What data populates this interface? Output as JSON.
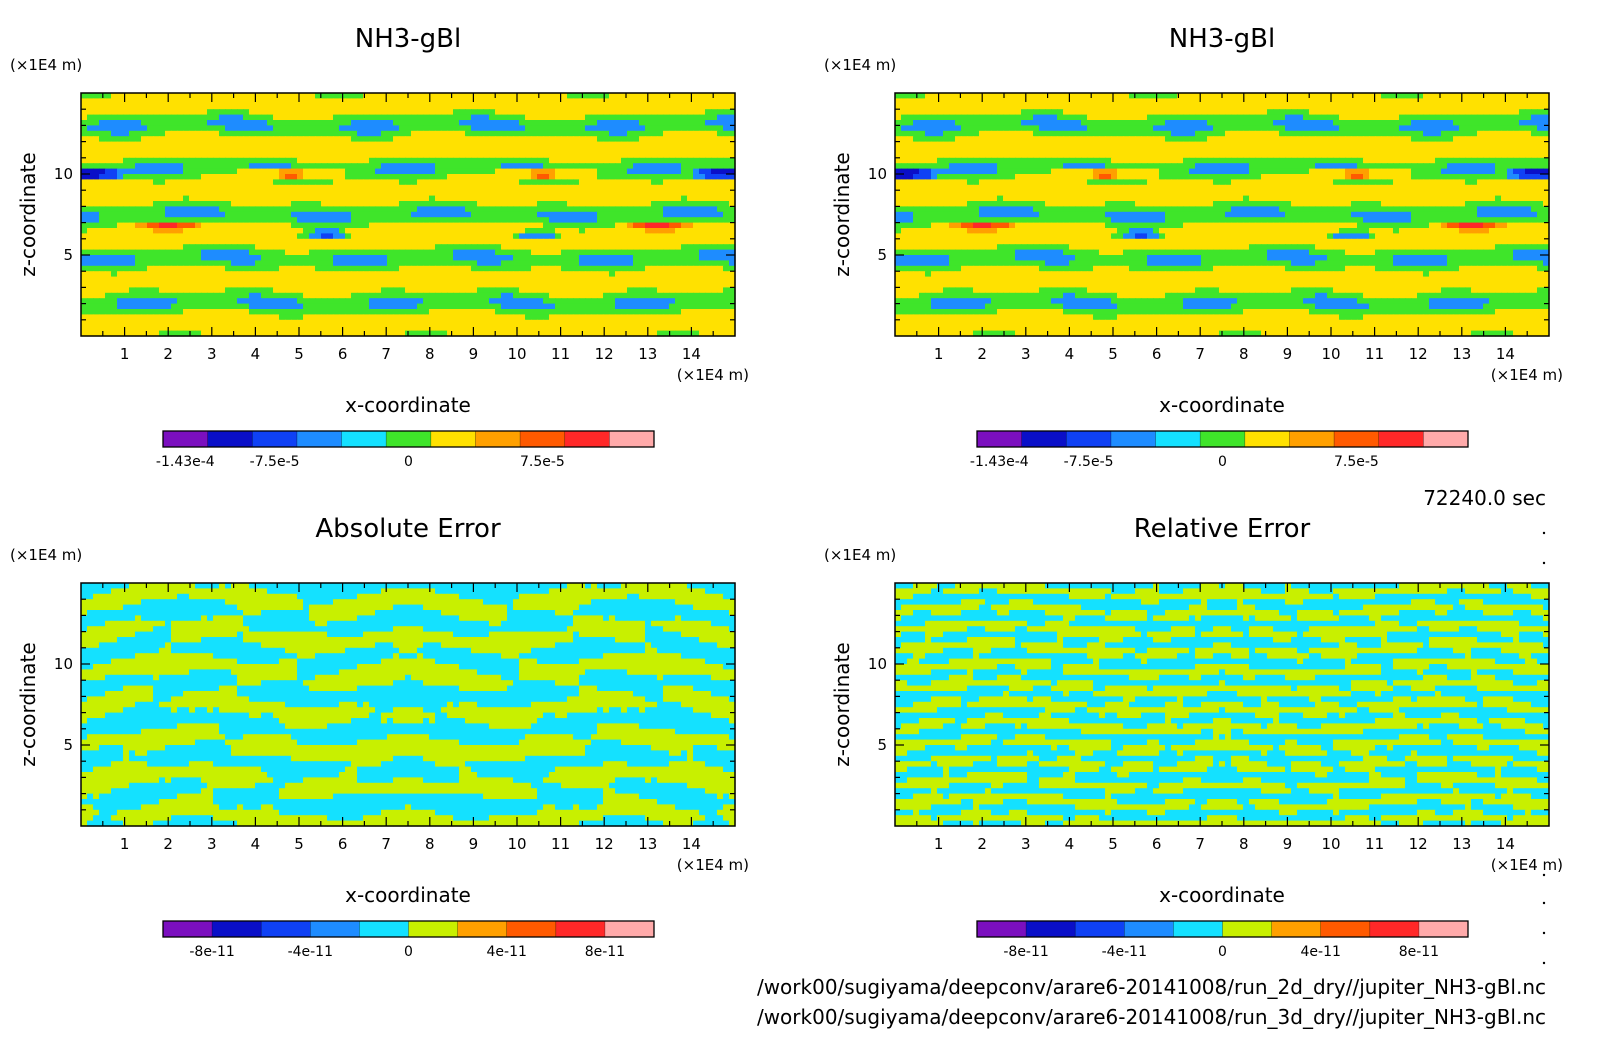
{
  "time_label": "72240.0 sec",
  "files": [
    "/work00/sugiyama/deepconv/arare6-20141008/run_2d_dry//jupiter_NH3-gBl.nc",
    "/work00/sugiyama/deepconv/arare6-20141008/run_3d_dry//jupiter_NH3-gBl.nc"
  ],
  "chart_data": [
    {
      "type": "heatmap",
      "title": "NH3-gBl",
      "xlabel": "x-coordinate",
      "ylabel": "z-coordinate",
      "x_unit": "(×1E4 m)",
      "z_unit": "(×1E4 m)",
      "xlim": [
        0,
        15
      ],
      "zlim": [
        0,
        15
      ],
      "x_ticks": [
        "1",
        "2",
        "3",
        "4",
        "5",
        "6",
        "7",
        "8",
        "9",
        "10",
        "11",
        "12",
        "13",
        "14"
      ],
      "z_ticks": [
        "5",
        "10"
      ],
      "colorbar": {
        "colors": [
          "#7b0fbf",
          "#0a0fc8",
          "#0f41f5",
          "#1e8cff",
          "#14e1ff",
          "#3fe52a",
          "#ffe100",
          "#ffa000",
          "#ff5a00",
          "#ff2828",
          "#ffaaaa"
        ],
        "tick_labels": [
          "-1.43e-4",
          "-7.5e-5",
          "0",
          "7.5e-5"
        ]
      }
    },
    {
      "type": "heatmap",
      "title": "NH3-gBl",
      "xlabel": "x-coordinate",
      "ylabel": "z-coordinate",
      "x_unit": "(×1E4 m)",
      "z_unit": "(×1E4 m)",
      "xlim": [
        0,
        15
      ],
      "zlim": [
        0,
        15
      ],
      "x_ticks": [
        "1",
        "2",
        "3",
        "4",
        "5",
        "6",
        "7",
        "8",
        "9",
        "10",
        "11",
        "12",
        "13",
        "14"
      ],
      "z_ticks": [
        "5",
        "10"
      ],
      "colorbar": {
        "colors": [
          "#7b0fbf",
          "#0a0fc8",
          "#0f41f5",
          "#1e8cff",
          "#14e1ff",
          "#3fe52a",
          "#ffe100",
          "#ffa000",
          "#ff5a00",
          "#ff2828",
          "#ffaaaa"
        ],
        "tick_labels": [
          "-1.43e-4",
          "-7.5e-5",
          "0",
          "7.5e-5"
        ]
      }
    },
    {
      "type": "heatmap",
      "title": "Absolute Error",
      "xlabel": "x-coordinate",
      "ylabel": "z-coordinate",
      "x_unit": "(×1E4 m)",
      "z_unit": "(×1E4 m)",
      "xlim": [
        0,
        15
      ],
      "zlim": [
        0,
        15
      ],
      "x_ticks": [
        "1",
        "2",
        "3",
        "4",
        "5",
        "6",
        "7",
        "8",
        "9",
        "10",
        "11",
        "12",
        "13",
        "14"
      ],
      "z_ticks": [
        "5",
        "10"
      ],
      "colorbar": {
        "colors": [
          "#7b0fbf",
          "#0a0fc8",
          "#0f41f5",
          "#1e8cff",
          "#14e1ff",
          "#c8f000",
          "#ffa000",
          "#ff5a00",
          "#ff2828",
          "#ffaaaa"
        ],
        "tick_labels": [
          "-8e-11",
          "-4e-11",
          "0",
          "4e-11",
          "8e-11"
        ]
      }
    },
    {
      "type": "heatmap",
      "title": "Relative Error",
      "xlabel": "x-coordinate",
      "ylabel": "z-coordinate",
      "x_unit": "(×1E4 m)",
      "z_unit": "(×1E4 m)",
      "xlim": [
        0,
        15
      ],
      "zlim": [
        0,
        15
      ],
      "x_ticks": [
        "1",
        "2",
        "3",
        "4",
        "5",
        "6",
        "7",
        "8",
        "9",
        "10",
        "11",
        "12",
        "13",
        "14"
      ],
      "z_ticks": [
        "5",
        "10"
      ],
      "colorbar": {
        "colors": [
          "#7b0fbf",
          "#0a0fc8",
          "#0f41f5",
          "#1e8cff",
          "#14e1ff",
          "#c8f000",
          "#ffa000",
          "#ff5a00",
          "#ff2828",
          "#ffaaaa"
        ],
        "tick_labels": [
          "-8e-11",
          "-4e-11",
          "0",
          "4e-11",
          "8e-11"
        ]
      }
    }
  ]
}
